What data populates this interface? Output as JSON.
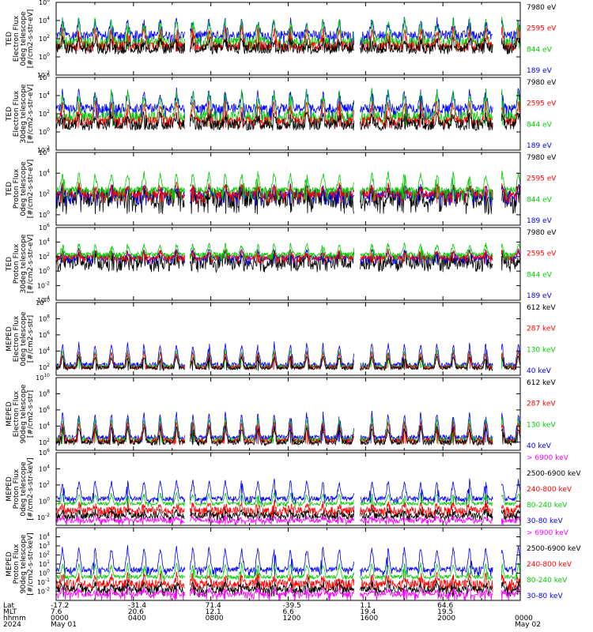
{
  "colors": {
    "black": "#000000",
    "red": "#ff0000",
    "green": "#00cc00",
    "blue": "#0000ff",
    "magenta": "#ff00ff"
  },
  "chart_data": {
    "type": "line",
    "x_start": "2024-05-01 0000",
    "x_end": "2024-05-02 0000",
    "gaps": [
      [
        "0640",
        "0655"
      ],
      [
        "1525",
        "1542"
      ],
      [
        "2235",
        "2300"
      ]
    ],
    "footer": {
      "row_labels": [
        "Lat",
        "MLT",
        "hhmm",
        "2024"
      ],
      "ticks": [
        {
          "hhmm": "0000",
          "lat": "-17.2",
          "mlt": "7.6",
          "date": "May 01"
        },
        {
          "hhmm": "0400",
          "lat": "-31.4",
          "mlt": "20.6",
          "date": ""
        },
        {
          "hhmm": "0800",
          "lat": "71.4",
          "mlt": "12.1",
          "date": ""
        },
        {
          "hhmm": "1200",
          "lat": "-39.5",
          "mlt": "6.6",
          "date": ""
        },
        {
          "hhmm": "1600",
          "lat": "1.1",
          "mlt": "19.4",
          "date": ""
        },
        {
          "hhmm": "2000",
          "lat": "64.6",
          "mlt": "19.5",
          "date": ""
        },
        {
          "hhmm": "0000",
          "lat": "",
          "mlt": "",
          "date": "May 02"
        }
      ]
    },
    "panels": [
      {
        "ylabel": [
          "TED",
          "Electron Flux",
          "0deg telescope",
          "[#/cm2-s-str-eV]"
        ],
        "yticks": [
          {
            "exp": -2,
            "label": "10^-2"
          },
          {
            "exp": 0,
            "label": "10^0"
          },
          {
            "exp": 2,
            "label": "10^2"
          },
          {
            "exp": 4,
            "label": "10^4"
          },
          {
            "exp": 6,
            "label": "10^6"
          }
        ],
        "ylim_exp": [
          -2,
          6
        ],
        "legend": [
          {
            "label": "7980 eV",
            "color": "#000000"
          },
          {
            "label": "2595 eV",
            "color": "#ff0000"
          },
          {
            "label": "844 eV",
            "color": "#00cc00"
          },
          {
            "label": "189 eV",
            "color": "#0000ff"
          }
        ],
        "series": [
          {
            "color": "#0000ff",
            "base": 2.4,
            "spike": 1.6,
            "noise": 0.5,
            "floor": 1.2
          },
          {
            "color": "#00cc00",
            "base": 1.6,
            "spike": 2.4,
            "noise": 0.6,
            "floor": 0.8
          },
          {
            "color": "#ff0000",
            "base": 1.2,
            "spike": 1.8,
            "noise": 0.5,
            "floor": 0.7
          },
          {
            "color": "#000000",
            "base": 0.9,
            "spike": 1.0,
            "noise": 0.6,
            "floor": 0.6
          }
        ]
      },
      {
        "ylabel": [
          "TED",
          "Electron Flux",
          "30deg telescope",
          "[#/cm2-s-str-eV]"
        ],
        "yticks": [
          {
            "exp": -2,
            "label": "10^-2"
          },
          {
            "exp": 0,
            "label": "10^0"
          },
          {
            "exp": 2,
            "label": "10^2"
          },
          {
            "exp": 4,
            "label": "10^4"
          },
          {
            "exp": 6,
            "label": "10^6"
          }
        ],
        "ylim_exp": [
          -2,
          6
        ],
        "legend": [
          {
            "label": "7980 eV",
            "color": "#000000"
          },
          {
            "label": "2595 eV",
            "color": "#ff0000"
          },
          {
            "label": "844 eV",
            "color": "#00cc00"
          },
          {
            "label": "189 eV",
            "color": "#0000ff"
          }
        ],
        "series": [
          {
            "color": "#0000ff",
            "base": 2.6,
            "spike": 1.8,
            "noise": 0.5,
            "floor": 1.5
          },
          {
            "color": "#00cc00",
            "base": 1.7,
            "spike": 2.6,
            "noise": 0.6,
            "floor": 0.7
          },
          {
            "color": "#ff0000",
            "base": 1.2,
            "spike": 2.0,
            "noise": 0.5,
            "floor": 0.5
          },
          {
            "color": "#000000",
            "base": 0.8,
            "spike": 1.0,
            "noise": 0.6,
            "floor": 0.3
          }
        ]
      },
      {
        "ylabel": [
          "TED",
          "Proton Flux",
          "0deg telescope",
          "[#/cm2-s-str-eV]"
        ],
        "yticks": [
          {
            "exp": 0,
            "label": "10^0"
          },
          {
            "exp": 2,
            "label": "10^2"
          },
          {
            "exp": 4,
            "label": "10^4"
          },
          {
            "exp": 6,
            "label": "10^6"
          }
        ],
        "ylim_exp": [
          -1,
          6
        ],
        "legend": [
          {
            "label": "7980 eV",
            "color": "#000000"
          },
          {
            "label": "2595 eV",
            "color": "#ff0000"
          },
          {
            "label": "844 eV",
            "color": "#00cc00"
          },
          {
            "label": "189 eV",
            "color": "#0000ff"
          }
        ],
        "series": [
          {
            "color": "#000000",
            "base": 1.6,
            "spike": 0.6,
            "noise": 1.0,
            "floor": 0.2
          },
          {
            "color": "#0000ff",
            "base": 1.9,
            "spike": 0.8,
            "noise": 0.4,
            "floor": 1.0
          },
          {
            "color": "#ff0000",
            "base": 2.0,
            "spike": 0.8,
            "noise": 0.4,
            "floor": 1.2
          },
          {
            "color": "#00cc00",
            "base": 2.4,
            "spike": 1.6,
            "noise": 0.3,
            "floor": 1.5
          }
        ]
      },
      {
        "ylabel": [
          "TED",
          "Proton Flux",
          "30deg telescope",
          "[#/cm2-s-str-eV]"
        ],
        "yticks": [
          {
            "exp": -4,
            "label": "10^-4"
          },
          {
            "exp": -2,
            "label": "10^-2"
          },
          {
            "exp": 0,
            "label": "10^0"
          },
          {
            "exp": 2,
            "label": "10^2"
          },
          {
            "exp": 4,
            "label": "10^4"
          },
          {
            "exp": 6,
            "label": "10^6"
          }
        ],
        "ylim_exp": [
          -4,
          6
        ],
        "legend": [
          {
            "label": "7980 eV",
            "color": "#000000"
          },
          {
            "label": "2595 eV",
            "color": "#ff0000"
          },
          {
            "label": "844 eV",
            "color": "#00cc00"
          },
          {
            "label": "189 eV",
            "color": "#0000ff"
          }
        ],
        "series": [
          {
            "color": "#000000",
            "base": 1.2,
            "spike": 0.8,
            "noise": 1.0,
            "floor": 0.0
          },
          {
            "color": "#0000ff",
            "base": 1.8,
            "spike": 1.0,
            "noise": 0.4,
            "floor": 1.0
          },
          {
            "color": "#ff0000",
            "base": 1.9,
            "spike": 0.8,
            "noise": 0.4,
            "floor": 1.2
          },
          {
            "color": "#00cc00",
            "base": 2.3,
            "spike": 1.4,
            "noise": 0.3,
            "floor": 1.6
          }
        ]
      },
      {
        "ylabel": [
          "MEPED",
          "Electron Flux",
          "0deg telescope",
          "[#/cm2-s-str]"
        ],
        "yticks": [
          {
            "exp": 2,
            "label": "10^2"
          },
          {
            "exp": 4,
            "label": "10^4"
          },
          {
            "exp": 6,
            "label": "10^6"
          },
          {
            "exp": 8,
            "label": "10^8"
          },
          {
            "exp": 10,
            "label": "10^10"
          }
        ],
        "ylim_exp": [
          1,
          10
        ],
        "legend": [
          {
            "label": "612 keV",
            "color": "#000000"
          },
          {
            "label": "287 keV",
            "color": "#ff0000"
          },
          {
            "label": "130 keV",
            "color": "#00cc00"
          },
          {
            "label": "40 keV",
            "color": "#0000ff"
          }
        ],
        "series": [
          {
            "color": "#0000ff",
            "base": 2.3,
            "spike": 2.6,
            "noise": 0.3,
            "floor": 2.0
          },
          {
            "color": "#00cc00",
            "base": 2.1,
            "spike": 2.0,
            "noise": 0.2,
            "floor": 1.9
          },
          {
            "color": "#ff0000",
            "base": 2.0,
            "spike": 1.8,
            "noise": 0.2,
            "floor": 1.8
          },
          {
            "color": "#000000",
            "base": 1.9,
            "spike": 1.4,
            "noise": 0.2,
            "floor": 1.7
          }
        ]
      },
      {
        "ylabel": [
          "MEPED",
          "Electron Flux",
          "90deg telescope",
          "[#/cm2-s-str]"
        ],
        "yticks": [
          {
            "exp": 2,
            "label": "10^2"
          },
          {
            "exp": 4,
            "label": "10^4"
          },
          {
            "exp": 6,
            "label": "10^6"
          },
          {
            "exp": 8,
            "label": "10^8"
          },
          {
            "exp": 10,
            "label": "10^10"
          }
        ],
        "ylim_exp": [
          1,
          10
        ],
        "legend": [
          {
            "label": "612 keV",
            "color": "#000000"
          },
          {
            "label": "287 keV",
            "color": "#ff0000"
          },
          {
            "label": "130 keV",
            "color": "#00cc00"
          },
          {
            "label": "40 keV",
            "color": "#0000ff"
          }
        ],
        "series": [
          {
            "color": "#0000ff",
            "base": 2.6,
            "spike": 3.0,
            "noise": 0.3,
            "floor": 2.0
          },
          {
            "color": "#00cc00",
            "base": 2.3,
            "spike": 2.6,
            "noise": 0.3,
            "floor": 1.9
          },
          {
            "color": "#ff0000",
            "base": 2.2,
            "spike": 2.2,
            "noise": 0.3,
            "floor": 1.8
          },
          {
            "color": "#000000",
            "base": 2.0,
            "spike": 1.8,
            "noise": 0.3,
            "floor": 1.7
          }
        ]
      },
      {
        "ylabel": [
          "MEPED",
          "Proton Flux",
          "0deg telescope",
          "[#/cm2-s-str-keV]"
        ],
        "yticks": [
          {
            "exp": -2,
            "label": "10^-2"
          },
          {
            "exp": 0,
            "label": "10^0"
          },
          {
            "exp": 2,
            "label": "10^2"
          },
          {
            "exp": 4,
            "label": "10^4"
          },
          {
            "exp": 6,
            "label": "10^6"
          }
        ],
        "ylim_exp": [
          -3,
          6
        ],
        "legend": [
          {
            "label": "> 6900 keV",
            "color": "#ff00ff"
          },
          {
            "label": "2500-6900 keV",
            "color": "#000000"
          },
          {
            "label": "240-800 keV",
            "color": "#ff0000"
          },
          {
            "label": "80-240 keV",
            "color": "#00cc00"
          },
          {
            "label": "30-80 keV",
            "color": "#0000ff"
          }
        ],
        "series": [
          {
            "color": "#0000ff",
            "base": 0.3,
            "spike": 2.2,
            "noise": 0.3,
            "floor": -0.2
          },
          {
            "color": "#00cc00",
            "base": -0.3,
            "spike": 1.2,
            "noise": 0.2,
            "floor": -0.6
          },
          {
            "color": "#ff0000",
            "base": -1.2,
            "spike": 0.8,
            "noise": 0.5,
            "floor": -2.0
          },
          {
            "color": "#000000",
            "base": -1.8,
            "spike": 0.6,
            "noise": 0.4,
            "floor": -2.4
          },
          {
            "color": "#ff00ff",
            "base": -2.4,
            "spike": 0.4,
            "noise": 0.3,
            "floor": -2.8
          }
        ]
      },
      {
        "ylabel": [
          "MEPED",
          "Proton Flux",
          "90deg telescope",
          "[#/cm2-s-str-keV]"
        ],
        "yticks": [
          {
            "exp": -2,
            "label": "10^-2"
          },
          {
            "exp": -1,
            "label": "10^-1"
          },
          {
            "exp": 0,
            "label": "10^0"
          },
          {
            "exp": 1,
            "label": "10^1"
          },
          {
            "exp": 2,
            "label": "10^2"
          },
          {
            "exp": 3,
            "label": "10^3"
          },
          {
            "exp": 4,
            "label": "10^4"
          }
        ],
        "ylim_exp": [
          -3,
          5
        ],
        "legend": [
          {
            "label": "> 6900 keV",
            "color": "#ff00ff"
          },
          {
            "label": "2500-6900 keV",
            "color": "#000000"
          },
          {
            "label": "240-800 keV",
            "color": "#ff0000"
          },
          {
            "label": "80-240 keV",
            "color": "#00cc00"
          },
          {
            "label": "30-80 keV",
            "color": "#0000ff"
          }
        ],
        "series": [
          {
            "color": "#0000ff",
            "base": 0.4,
            "spike": 2.4,
            "noise": 0.3,
            "floor": -0.2
          },
          {
            "color": "#00cc00",
            "base": -0.4,
            "spike": 1.4,
            "noise": 0.2,
            "floor": -0.7
          },
          {
            "color": "#ff0000",
            "base": -1.2,
            "spike": 0.9,
            "noise": 0.5,
            "floor": -2.0
          },
          {
            "color": "#000000",
            "base": -1.8,
            "spike": 0.7,
            "noise": 0.4,
            "floor": -2.5
          },
          {
            "color": "#ff00ff",
            "base": -2.3,
            "spike": 0.5,
            "noise": 0.3,
            "floor": -2.9
          }
        ]
      }
    ]
  }
}
